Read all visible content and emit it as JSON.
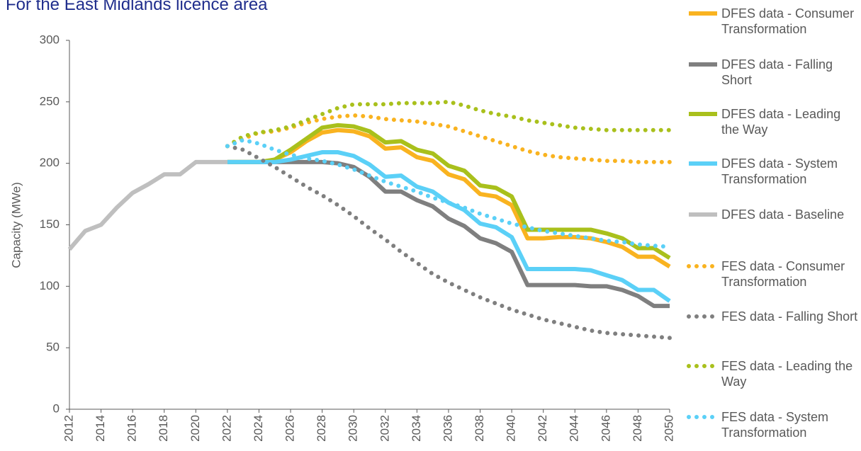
{
  "chart_data": {
    "type": "line",
    "title": "For the East Midlands licence area",
    "y_label": "Capacity (MWe)",
    "x": [
      2012,
      2013,
      2014,
      2015,
      2016,
      2017,
      2018,
      2019,
      2020,
      2021,
      2022,
      2023,
      2024,
      2025,
      2026,
      2027,
      2028,
      2029,
      2030,
      2031,
      2032,
      2033,
      2034,
      2035,
      2036,
      2037,
      2038,
      2039,
      2040,
      2041,
      2042,
      2043,
      2044,
      2045,
      2046,
      2047,
      2048,
      2049,
      2050
    ],
    "xlim": [
      2012,
      2050
    ],
    "xticks": [
      2012,
      2014,
      2016,
      2018,
      2020,
      2022,
      2024,
      2026,
      2028,
      2030,
      2032,
      2034,
      2036,
      2038,
      2040,
      2042,
      2044,
      2046,
      2048,
      2050
    ],
    "ylim": [
      0,
      300
    ],
    "yticks": [
      0,
      50,
      100,
      150,
      200,
      250,
      300
    ],
    "grid": false,
    "legend": "right",
    "series": [
      {
        "name": "DFES data - Consumer Transformation",
        "color": "#f9b320",
        "style": "solid",
        "values": [
          null,
          null,
          null,
          null,
          null,
          null,
          null,
          null,
          null,
          null,
          201,
          201,
          201,
          203,
          209,
          218,
          225,
          227,
          226,
          222,
          212,
          213,
          205,
          202,
          191,
          187,
          175,
          173,
          166,
          139,
          139,
          140,
          140,
          139,
          136,
          132,
          124,
          124,
          116
        ]
      },
      {
        "name": "DFES data - Falling Short",
        "color": "#7f7f7f",
        "style": "solid",
        "values": [
          null,
          null,
          null,
          null,
          null,
          null,
          null,
          null,
          null,
          null,
          201,
          201,
          201,
          201,
          201,
          201,
          201,
          200,
          197,
          189,
          177,
          177,
          170,
          165,
          155,
          149,
          139,
          135,
          128,
          101,
          101,
          101,
          101,
          100,
          100,
          97,
          92,
          84,
          84
        ]
      },
      {
        "name": "DFES data - Leading the Way",
        "color": "#a9c01c",
        "style": "solid",
        "values": [
          null,
          null,
          null,
          null,
          null,
          null,
          null,
          null,
          null,
          null,
          201,
          201,
          201,
          203,
          211,
          220,
          229,
          231,
          230,
          226,
          217,
          218,
          211,
          208,
          198,
          194,
          182,
          180,
          173,
          146,
          146,
          146,
          146,
          146,
          143,
          139,
          131,
          131,
          123
        ]
      },
      {
        "name": "DFES data - System Transformation",
        "color": "#5bd0f7",
        "style": "solid",
        "values": [
          null,
          null,
          null,
          null,
          null,
          null,
          null,
          null,
          null,
          null,
          201,
          201,
          201,
          201,
          203,
          206,
          209,
          209,
          206,
          199,
          189,
          190,
          181,
          177,
          168,
          162,
          151,
          148,
          140,
          114,
          114,
          114,
          114,
          113,
          109,
          105,
          97,
          97,
          88
        ]
      },
      {
        "name": "DFES data - Baseline",
        "color": "#bfbfbf",
        "style": "solid",
        "values": [
          130,
          145,
          150,
          164,
          176,
          183,
          191,
          191,
          201,
          201,
          201,
          null,
          null,
          null,
          null,
          null,
          null,
          null,
          null,
          null,
          null,
          null,
          null,
          null,
          null,
          null,
          null,
          null,
          null,
          null,
          null,
          null,
          null,
          null,
          null,
          null,
          null,
          null,
          null
        ]
      },
      {
        "name": "FES data - Consumer Transformation",
        "color": "#f9b320",
        "style": "dotted",
        "values": [
          null,
          null,
          null,
          null,
          null,
          null,
          null,
          null,
          null,
          null,
          214,
          220,
          225,
          226,
          229,
          233,
          236,
          238,
          239,
          238,
          236,
          235,
          234,
          232,
          230,
          226,
          222,
          218,
          214,
          210,
          207,
          205,
          204,
          203,
          202,
          202,
          201,
          201,
          201
        ]
      },
      {
        "name": "FES data - Falling Short",
        "color": "#7f7f7f",
        "style": "dotted",
        "values": [
          null,
          null,
          null,
          null,
          null,
          null,
          null,
          null,
          null,
          null,
          214,
          211,
          204,
          197,
          189,
          181,
          174,
          166,
          157,
          147,
          138,
          128,
          119,
          110,
          103,
          97,
          91,
          86,
          81,
          77,
          73,
          70,
          67,
          64,
          62,
          61,
          60,
          59,
          58
        ]
      },
      {
        "name": "FES data - Leading the Way",
        "color": "#a9c01c",
        "style": "dotted",
        "values": [
          null,
          null,
          null,
          null,
          null,
          null,
          null,
          null,
          null,
          null,
          214,
          222,
          225,
          227,
          230,
          235,
          240,
          245,
          248,
          248,
          248,
          249,
          249,
          249,
          250,
          247,
          243,
          240,
          238,
          235,
          233,
          231,
          229,
          228,
          227,
          227,
          227,
          227,
          227
        ]
      },
      {
        "name": "FES data - System Transformation",
        "color": "#5bd0f7",
        "style": "dotted",
        "values": [
          null,
          null,
          null,
          null,
          null,
          null,
          null,
          null,
          null,
          null,
          214,
          219,
          216,
          211,
          207,
          204,
          202,
          199,
          195,
          190,
          185,
          181,
          177,
          172,
          168,
          164,
          159,
          155,
          151,
          148,
          145,
          143,
          141,
          139,
          137,
          136,
          134,
          133,
          132
        ]
      }
    ]
  }
}
